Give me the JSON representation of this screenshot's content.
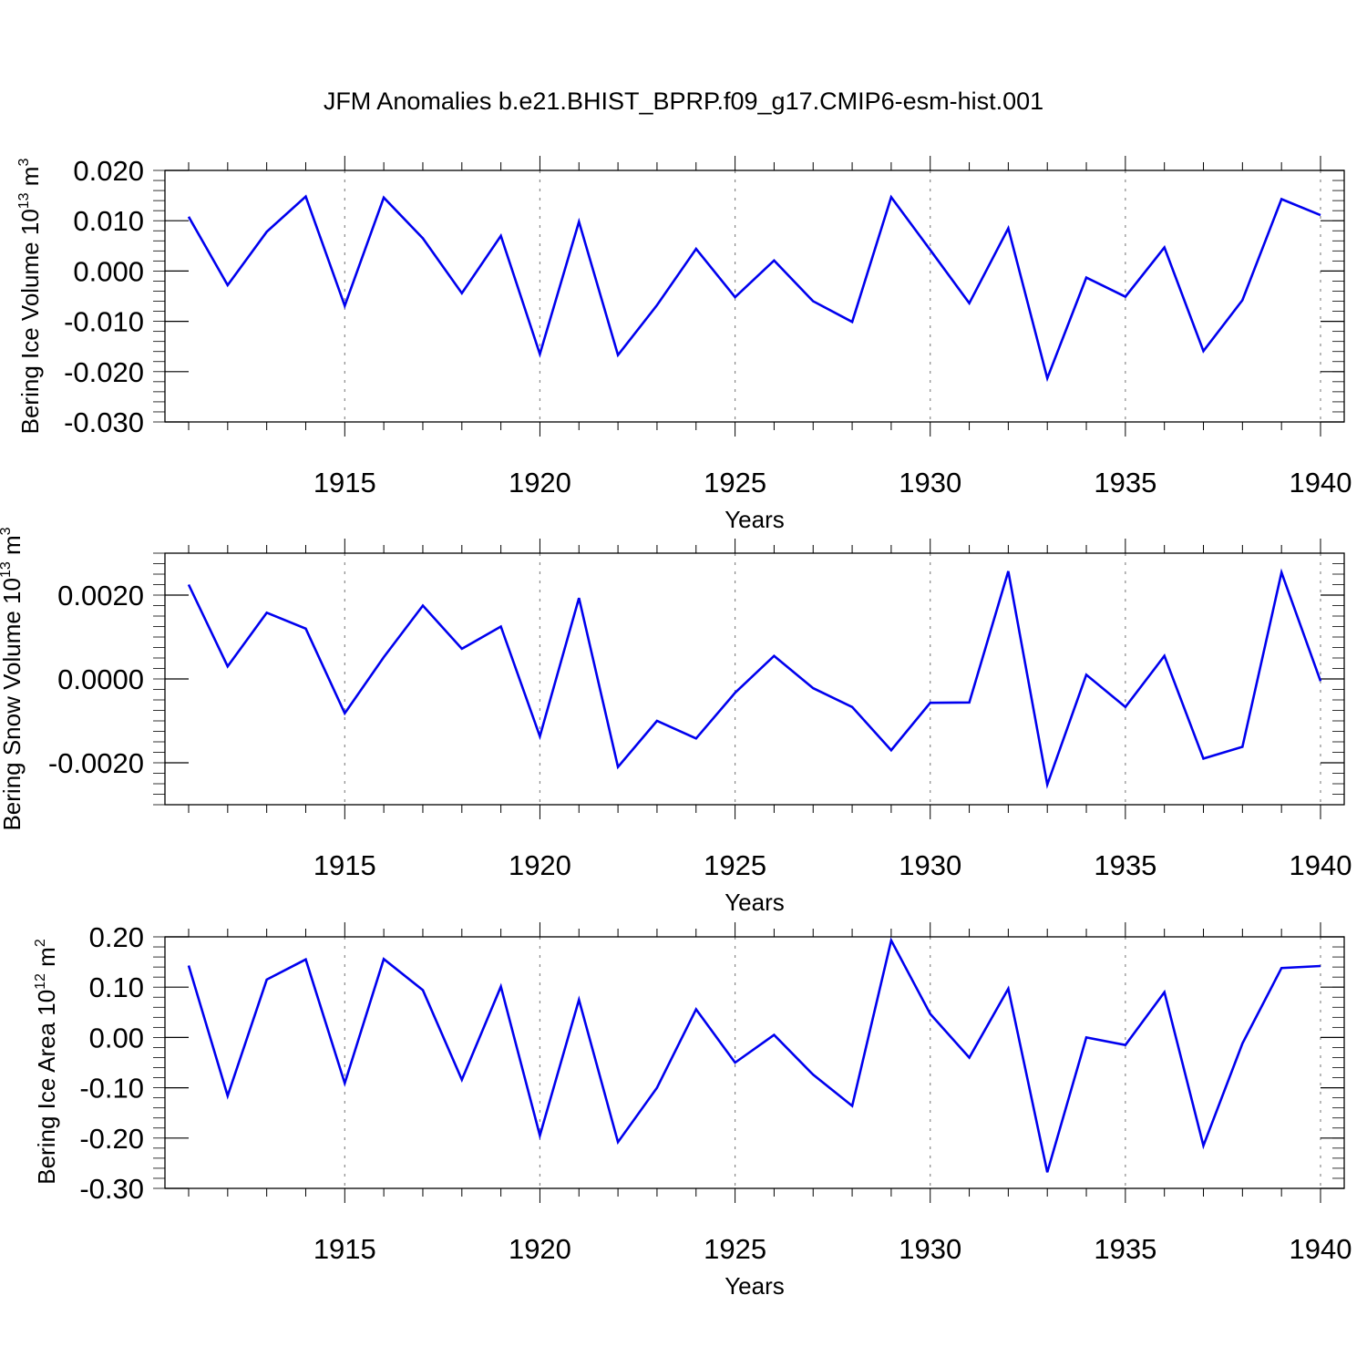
{
  "title": "JFM Anomalies b.e21.BHIST_BPRP.f09_g17.CMIP6-esm-hist.001",
  "colors": {
    "series": "#0000ee",
    "axis": "#000000",
    "grid": "#888888"
  },
  "chart_data": [
    {
      "type": "line",
      "ylabel_main": "Bering Ice Volume 10",
      "ylabel_exp": "13",
      "ylabel_unit": " m",
      "ylabel_unit_exp": "3",
      "xlabel": "Years",
      "xlim": [
        1911,
        1940
      ],
      "ylim": [
        -0.03,
        0.02
      ],
      "yticks": [
        -0.03,
        -0.02,
        -0.01,
        0.0,
        0.01,
        0.02
      ],
      "ytick_labels": [
        "-0.030",
        "-0.020",
        "-0.010",
        "0.000",
        "0.010",
        "0.020"
      ],
      "xticks": [
        1915,
        1920,
        1925,
        1930,
        1935,
        1940
      ],
      "xtick_labels": [
        "1915",
        "1920",
        "1925",
        "1930",
        "1935",
        "1940"
      ],
      "grid": "vertical dashed at major x ticks",
      "x": [
        1911,
        1912,
        1913,
        1914,
        1915,
        1916,
        1917,
        1918,
        1919,
        1920,
        1921,
        1922,
        1923,
        1924,
        1925,
        1926,
        1927,
        1928,
        1929,
        1930,
        1931,
        1932,
        1933,
        1934,
        1935,
        1936,
        1937,
        1938,
        1939,
        1940
      ],
      "y": [
        0.0108,
        -0.0028,
        0.0078,
        0.0148,
        -0.0069,
        0.0146,
        0.0065,
        -0.0044,
        0.007,
        -0.0165,
        0.0098,
        -0.0167,
        -0.0068,
        0.0044,
        -0.0052,
        0.0021,
        -0.006,
        -0.0101,
        0.0147,
        0.0042,
        -0.0064,
        0.0085,
        -0.0213,
        -0.0013,
        -0.0051,
        0.0047,
        -0.0159,
        -0.0058,
        0.0143,
        0.0111
      ]
    },
    {
      "type": "line",
      "ylabel_main": "Bering Snow Volume 10",
      "ylabel_exp": "13",
      "ylabel_unit": " m",
      "ylabel_unit_exp": "3",
      "xlabel": "Years",
      "xlim": [
        1911,
        1940
      ],
      "ylim": [
        -0.003,
        0.003
      ],
      "yticks": [
        -0.002,
        0.0,
        0.002
      ],
      "ytick_labels": [
        "-0.0020",
        "0.0000",
        "0.0020"
      ],
      "xticks": [
        1915,
        1920,
        1925,
        1930,
        1935,
        1940
      ],
      "xtick_labels": [
        "1915",
        "1920",
        "1925",
        "1930",
        "1935",
        "1940"
      ],
      "grid": "vertical dashed at major x ticks",
      "x": [
        1911,
        1912,
        1913,
        1914,
        1915,
        1916,
        1917,
        1918,
        1919,
        1920,
        1921,
        1922,
        1923,
        1924,
        1925,
        1926,
        1927,
        1928,
        1929,
        1930,
        1931,
        1932,
        1933,
        1934,
        1935,
        1936,
        1937,
        1938,
        1939,
        1940
      ],
      "y": [
        0.00225,
        0.0003,
        0.00158,
        0.0012,
        -0.00082,
        0.00052,
        0.00175,
        0.00072,
        0.00125,
        -0.00137,
        0.00193,
        -0.0021,
        -0.001,
        -0.00142,
        -0.00033,
        0.00055,
        -0.00022,
        -0.00067,
        -0.0017,
        -0.00057,
        -0.00056,
        0.00257,
        -0.00252,
        0.0001,
        -0.00067,
        0.00055,
        -0.0019,
        -0.00162,
        0.00254,
        -5e-05
      ]
    },
    {
      "type": "line",
      "ylabel_main": "Bering Ice Area 10",
      "ylabel_exp": "12",
      "ylabel_unit": " m",
      "ylabel_unit_exp": "2",
      "xlabel": "Years",
      "xlim": [
        1911,
        1940
      ],
      "ylim": [
        -0.3,
        0.2
      ],
      "yticks": [
        -0.3,
        -0.2,
        -0.1,
        0.0,
        0.1,
        0.2
      ],
      "ytick_labels": [
        "-0.30",
        "-0.20",
        "-0.10",
        "0.00",
        "0.10",
        "0.20"
      ],
      "xticks": [
        1915,
        1920,
        1925,
        1930,
        1935,
        1940
      ],
      "xtick_labels": [
        "1915",
        "1920",
        "1925",
        "1930",
        "1935",
        "1940"
      ],
      "grid": "vertical dashed at major x ticks",
      "x": [
        1911,
        1912,
        1913,
        1914,
        1915,
        1916,
        1917,
        1918,
        1919,
        1920,
        1921,
        1922,
        1923,
        1924,
        1925,
        1926,
        1927,
        1928,
        1929,
        1930,
        1931,
        1932,
        1933,
        1934,
        1935,
        1936,
        1937,
        1938,
        1939,
        1940
      ],
      "y": [
        0.143,
        -0.116,
        0.115,
        0.155,
        -0.091,
        0.156,
        0.094,
        -0.084,
        0.101,
        -0.195,
        0.075,
        -0.208,
        -0.1,
        0.056,
        -0.05,
        0.005,
        -0.074,
        -0.136,
        0.193,
        0.047,
        -0.04,
        0.097,
        -0.268,
        0.0,
        -0.015,
        0.09,
        -0.215,
        -0.012,
        0.138,
        0.142
      ]
    }
  ]
}
